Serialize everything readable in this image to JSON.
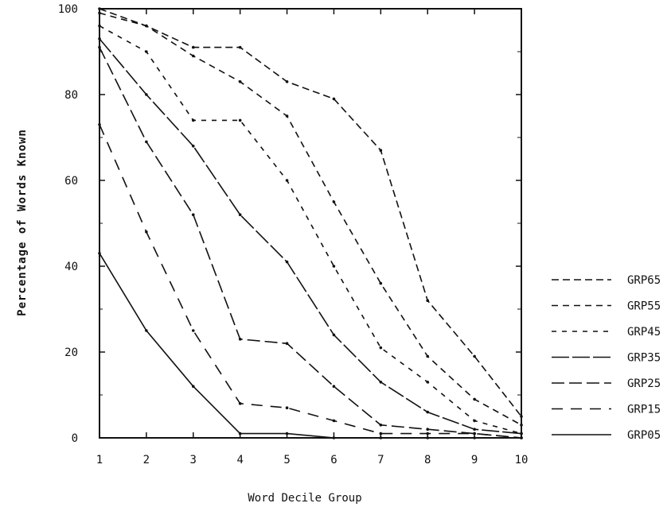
{
  "chart_data": {
    "type": "line",
    "title": "",
    "xlabel": "Word Decile Group",
    "ylabel": "Percentage of Words Known",
    "x": [
      1,
      2,
      3,
      4,
      5,
      6,
      7,
      8,
      9,
      10
    ],
    "xlim": [
      1,
      10
    ],
    "ylim": [
      0,
      100
    ],
    "xticks": [
      "1",
      "2",
      "3",
      "4",
      "5",
      "6",
      "7",
      "8",
      "9",
      "10"
    ],
    "yticks": [
      "0",
      "20",
      "40",
      "60",
      "80",
      "100"
    ],
    "grid": false,
    "legend_position": "right",
    "series": [
      {
        "name": "GRP65",
        "dash": "9,5",
        "values": [
          100,
          96,
          91,
          91,
          83,
          79,
          67,
          32,
          19,
          5
        ]
      },
      {
        "name": "GRP55",
        "dash": "8,6",
        "values": [
          99,
          96,
          89,
          83,
          75,
          55,
          36,
          19,
          9,
          3
        ]
      },
      {
        "name": "GRP45",
        "dash": "6,7",
        "values": [
          96,
          90,
          74,
          74,
          60,
          40,
          21,
          13,
          4,
          1
        ]
      },
      {
        "name": "GRP35",
        "dash": "22,4",
        "values": [
          93,
          80,
          68,
          52,
          41,
          24,
          13,
          6,
          2,
          1
        ]
      },
      {
        "name": "GRP25",
        "dash": "16,6",
        "values": [
          91,
          69,
          52,
          23,
          22,
          12,
          3,
          2,
          1,
          0
        ]
      },
      {
        "name": "GRP15",
        "dash": "14,10",
        "values": [
          73,
          48,
          25,
          8,
          7,
          4,
          1,
          1,
          1,
          0
        ]
      },
      {
        "name": "GRP05",
        "dash": "",
        "values": [
          43,
          25,
          12,
          1,
          1,
          0,
          0,
          0,
          0,
          0
        ]
      }
    ]
  }
}
